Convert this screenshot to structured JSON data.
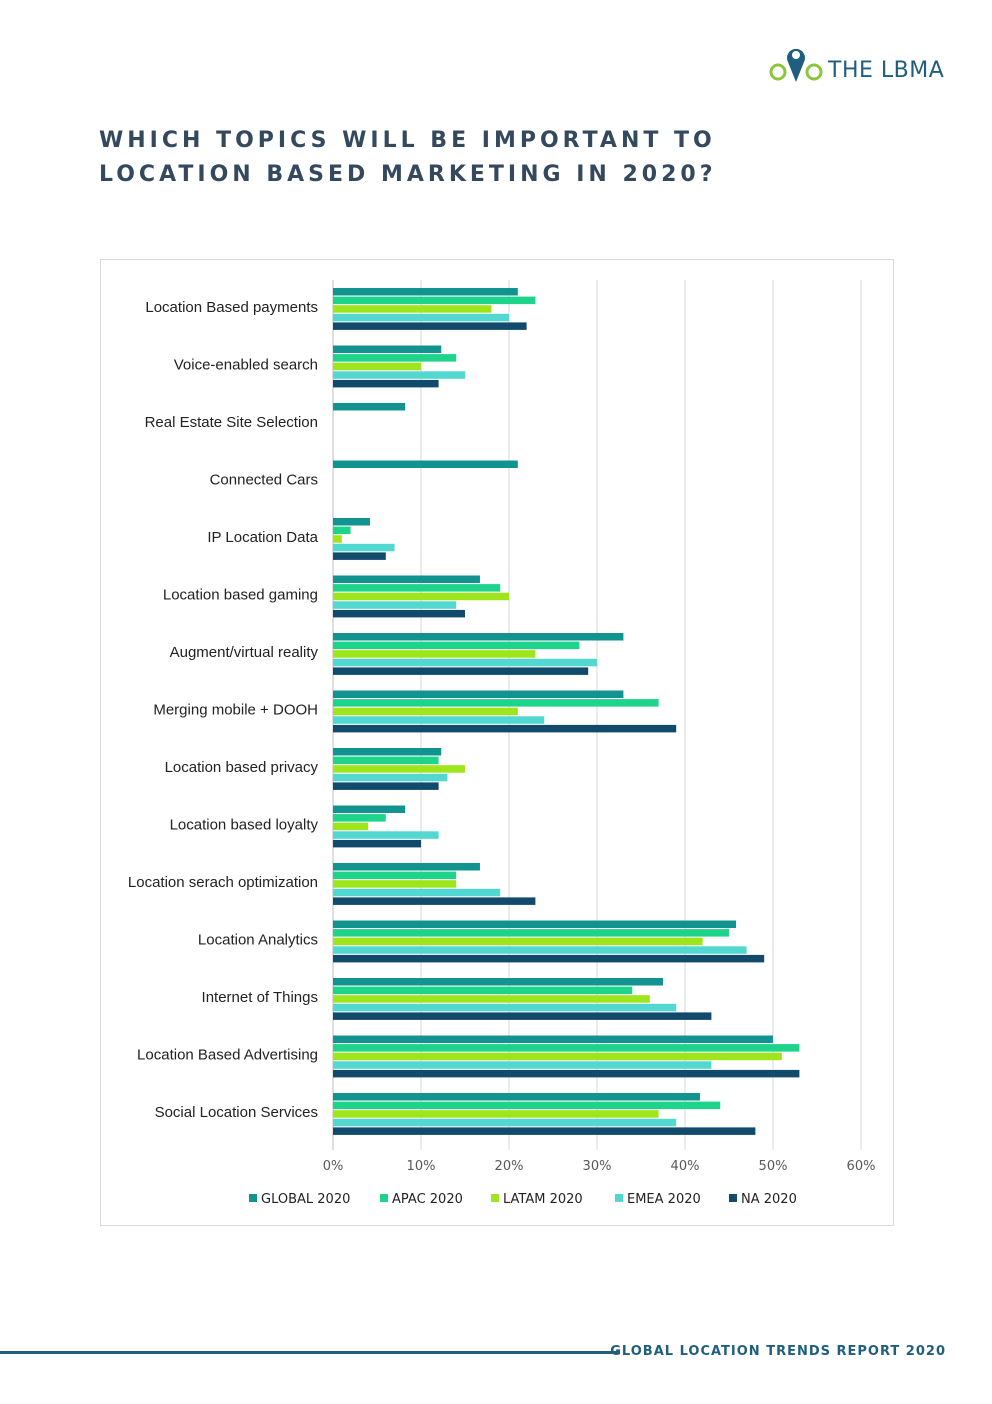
{
  "logo": {
    "text": "THE LBMA",
    "icon": "map-pin-icon"
  },
  "page": {
    "title_line1": "WHICH TOPICS WILL BE IMPORTANT TO",
    "title_line2": "LOCATION BASED MARKETING IN 2020?"
  },
  "footer": {
    "text": "GLOBAL LOCATION TRENDS REPORT 2020"
  },
  "chart_data": {
    "type": "bar",
    "orientation": "horizontal",
    "title": "",
    "xlabel": "",
    "ylabel": "",
    "xlim": [
      0,
      60
    ],
    "x_ticks": [
      0,
      10,
      20,
      30,
      40,
      50,
      60
    ],
    "x_tick_labels": [
      "0%",
      "10%",
      "20%",
      "30%",
      "40%",
      "50%",
      "60%"
    ],
    "grid": "vertical",
    "legend_position": "bottom",
    "categories": [
      "Location Based payments",
      "Voice-enabled search",
      "Real Estate Site Selection",
      "Connected Cars",
      "IP Location Data",
      "Location based gaming",
      "Augment/virtual reality",
      "Merging mobile + DOOH",
      "Location based privacy",
      "Location based loyalty",
      "Location serach optimization",
      "Location Analytics",
      "Internet of Things",
      "Location Based Advertising",
      "Social Location Services"
    ],
    "series": [
      {
        "name": "GLOBAL 2020",
        "color": "#13938f",
        "values": [
          21,
          12.3,
          8.2,
          21,
          4.2,
          16.7,
          33,
          33,
          12.3,
          8.2,
          16.7,
          45.8,
          37.5,
          50,
          41.7
        ]
      },
      {
        "name": "APAC 2020",
        "color": "#1ed48a",
        "values": [
          23,
          14,
          null,
          null,
          2,
          19,
          28,
          37,
          12,
          6,
          14,
          45,
          34,
          53,
          44
        ]
      },
      {
        "name": "LATAM 2020",
        "color": "#9ee51b",
        "values": [
          18,
          10,
          null,
          null,
          1,
          20,
          23,
          21,
          15,
          4,
          14,
          42,
          36,
          51,
          37
        ]
      },
      {
        "name": "EMEA 2020",
        "color": "#52d8d0",
        "values": [
          20,
          15,
          null,
          null,
          7,
          14,
          30,
          24,
          13,
          12,
          19,
          47,
          39,
          43,
          39
        ]
      },
      {
        "name": "NA 2020",
        "color": "#124a6b",
        "values": [
          22,
          12,
          null,
          null,
          6,
          15,
          29,
          39,
          12,
          10,
          23,
          49,
          43,
          53,
          48
        ]
      }
    ]
  }
}
